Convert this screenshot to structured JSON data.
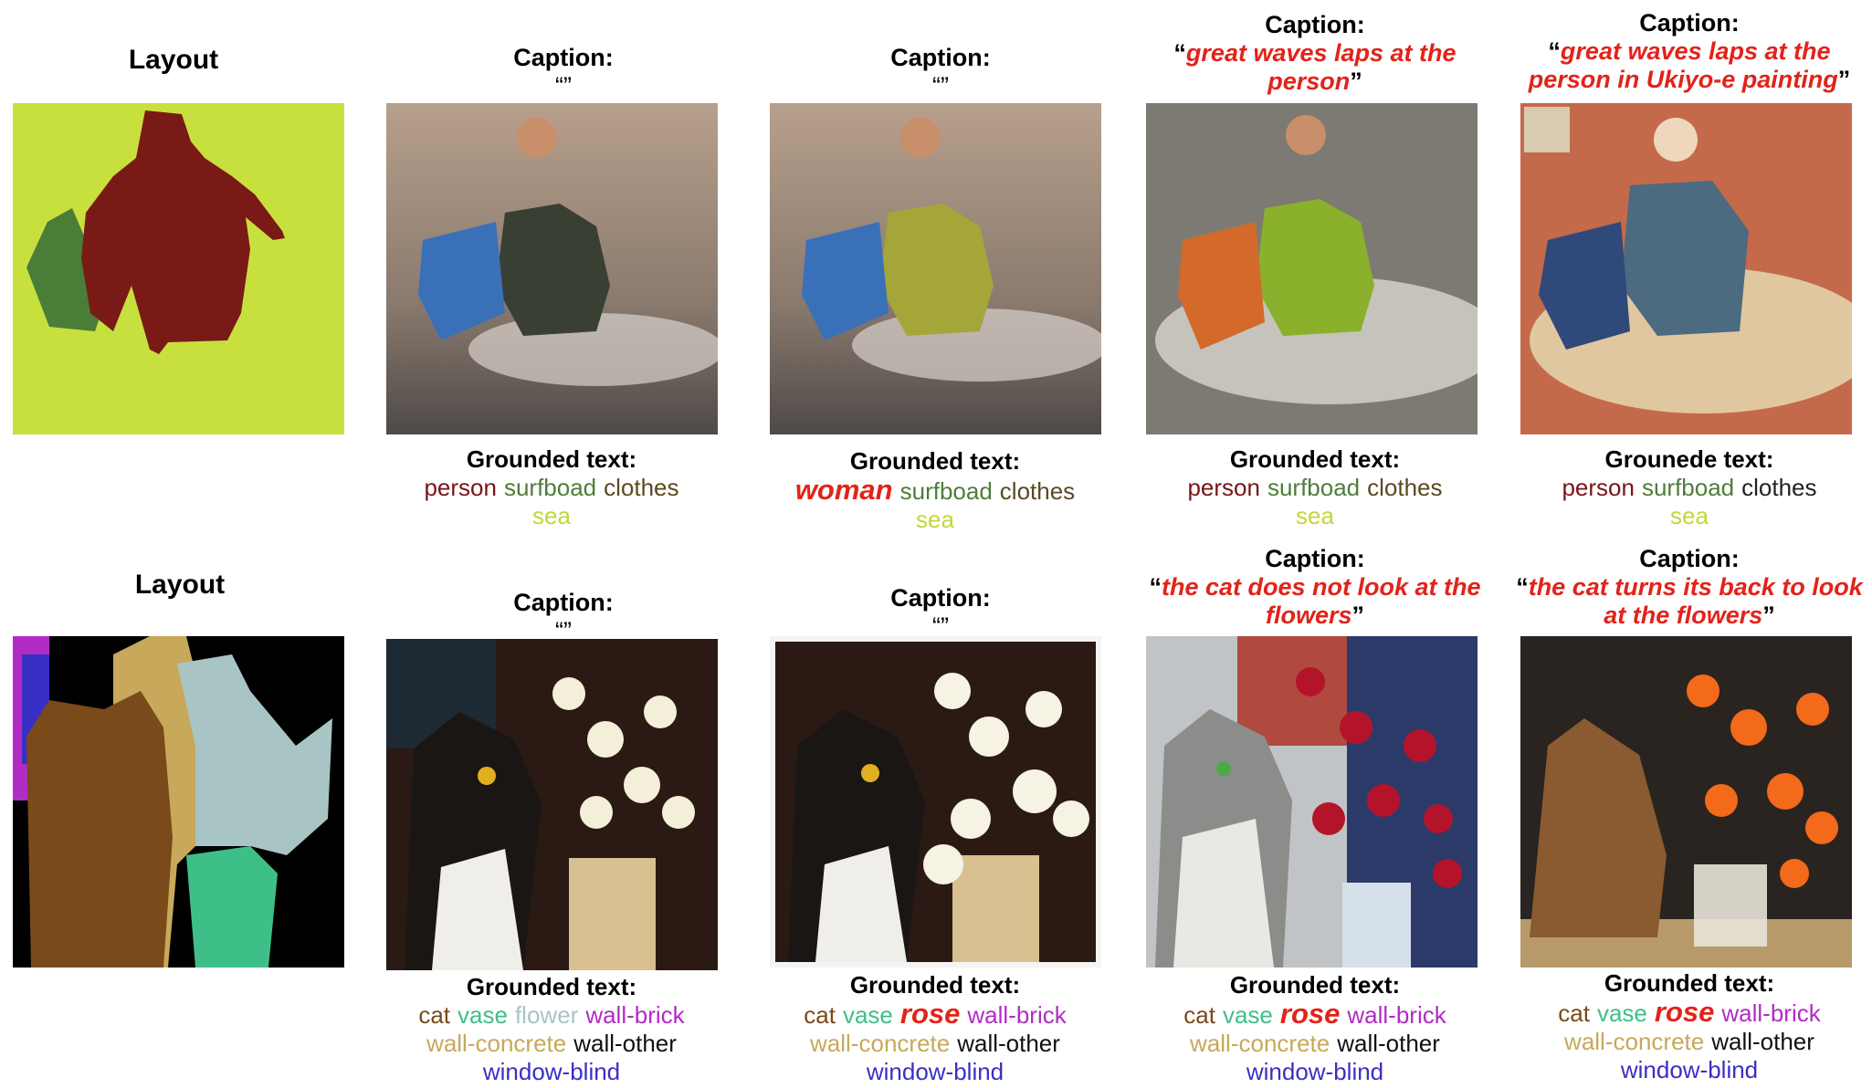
{
  "rows": [
    {
      "layout_label": "Layout",
      "columns": [
        {
          "caption_label": "Caption:",
          "caption_text": "“”",
          "grounded_label": "Grounded text:",
          "words": [
            {
              "text": "person",
              "color": "#7a1418",
              "emphasis": false
            },
            {
              "text": "surfboad",
              "color": "#4f7d3a",
              "emphasis": false
            },
            {
              "text": "clothes",
              "color": "#5a4a22",
              "emphasis": false
            },
            {
              "text": "sea",
              "color": "#c4d63a",
              "emphasis": false,
              "newline": true
            }
          ]
        },
        {
          "caption_label": "Caption:",
          "caption_text": "“”",
          "grounded_label": "Grounded text:",
          "words": [
            {
              "text": "woman",
              "color": "#e2231a",
              "emphasis": true
            },
            {
              "text": "surfboad",
              "color": "#4f7d3a",
              "emphasis": false
            },
            {
              "text": "clothes",
              "color": "#5a4a22",
              "emphasis": false
            },
            {
              "text": "sea",
              "color": "#c4d63a",
              "emphasis": false,
              "newline": true
            }
          ]
        },
        {
          "caption_label": "Caption:",
          "caption_text": "great waves laps at the person",
          "grounded_label": "Grounded text:",
          "words": [
            {
              "text": "person",
              "color": "#7a1418",
              "emphasis": false
            },
            {
              "text": "surfboad",
              "color": "#4f7d3a",
              "emphasis": false
            },
            {
              "text": "clothes",
              "color": "#5a4a22",
              "emphasis": false
            },
            {
              "text": "sea",
              "color": "#c4d63a",
              "emphasis": false,
              "newline": true
            }
          ]
        },
        {
          "caption_label": "Caption:",
          "caption_text": "great waves laps at the person in Ukiyo-e painting",
          "grounded_label": "Grounede text:",
          "words": [
            {
              "text": "person",
              "color": "#7a1418",
              "emphasis": false
            },
            {
              "text": "surfboad",
              "color": "#4f7d3a",
              "emphasis": false
            },
            {
              "text": "clothes",
              "color": "#222222",
              "emphasis": false
            },
            {
              "text": "sea",
              "color": "#c4d63a",
              "emphasis": false,
              "newline": true
            }
          ]
        }
      ]
    },
    {
      "layout_label": "Layout",
      "columns": [
        {
          "caption_label": "Caption:",
          "caption_text": "“”",
          "grounded_label": "Grounded text:",
          "words": [
            {
              "text": "cat",
              "color": "#7a4a1a",
              "emphasis": false
            },
            {
              "text": "vase",
              "color": "#3fbf88",
              "emphasis": false
            },
            {
              "text": "flower",
              "color": "#a9c4c4",
              "emphasis": false
            },
            {
              "text": "wall-brick",
              "color": "#b02cc4",
              "emphasis": false
            },
            {
              "text": "wall-concrete",
              "color": "#c8a85a",
              "emphasis": false,
              "newline": true
            },
            {
              "text": "wall-other",
              "color": "#111111",
              "emphasis": false
            },
            {
              "text": "window-blind",
              "color": "#3a2fc4",
              "emphasis": false,
              "newline": true
            }
          ]
        },
        {
          "caption_label": "Caption:",
          "caption_text": "“”",
          "grounded_label": "Grounded text:",
          "words": [
            {
              "text": "cat",
              "color": "#7a4a1a",
              "emphasis": false
            },
            {
              "text": "vase",
              "color": "#3fbf88",
              "emphasis": false
            },
            {
              "text": "rose",
              "color": "#e2231a",
              "emphasis": true
            },
            {
              "text": "wall-brick",
              "color": "#b02cc4",
              "emphasis": false
            },
            {
              "text": "wall-concrete",
              "color": "#c8a85a",
              "emphasis": false,
              "newline": true
            },
            {
              "text": "wall-other",
              "color": "#111111",
              "emphasis": false
            },
            {
              "text": "window-blind",
              "color": "#3a2fc4",
              "emphasis": false,
              "newline": true
            }
          ]
        },
        {
          "caption_label": "Caption:",
          "caption_text": "the cat does not look at the flowers",
          "grounded_label": "Grounded text:",
          "words": [
            {
              "text": "cat",
              "color": "#7a4a1a",
              "emphasis": false
            },
            {
              "text": "vase",
              "color": "#3fbf88",
              "emphasis": false
            },
            {
              "text": "rose",
              "color": "#e2231a",
              "emphasis": true
            },
            {
              "text": "wall-brick",
              "color": "#b02cc4",
              "emphasis": false
            },
            {
              "text": "wall-concrete",
              "color": "#c8a85a",
              "emphasis": false,
              "newline": true
            },
            {
              "text": "wall-other",
              "color": "#111111",
              "emphasis": false
            },
            {
              "text": "window-blind",
              "color": "#3a2fc4",
              "emphasis": false,
              "newline": true
            }
          ]
        },
        {
          "caption_label": "Caption:",
          "caption_text": "the cat turns its back to look at the flowers",
          "grounded_label": "Grounded text:",
          "words": [
            {
              "text": "cat",
              "color": "#7a4a1a",
              "emphasis": false
            },
            {
              "text": "vase",
              "color": "#3fbf88",
              "emphasis": false
            },
            {
              "text": "rose",
              "color": "#e2231a",
              "emphasis": true
            },
            {
              "text": "wall-brick",
              "color": "#b02cc4",
              "emphasis": false
            },
            {
              "text": "wall-concrete",
              "color": "#c8a85a",
              "emphasis": false,
              "newline": true
            },
            {
              "text": "wall-other",
              "color": "#111111",
              "emphasis": false
            },
            {
              "text": "window-blind",
              "color": "#3a2fc4",
              "emphasis": false,
              "newline": true
            }
          ]
        }
      ]
    }
  ]
}
